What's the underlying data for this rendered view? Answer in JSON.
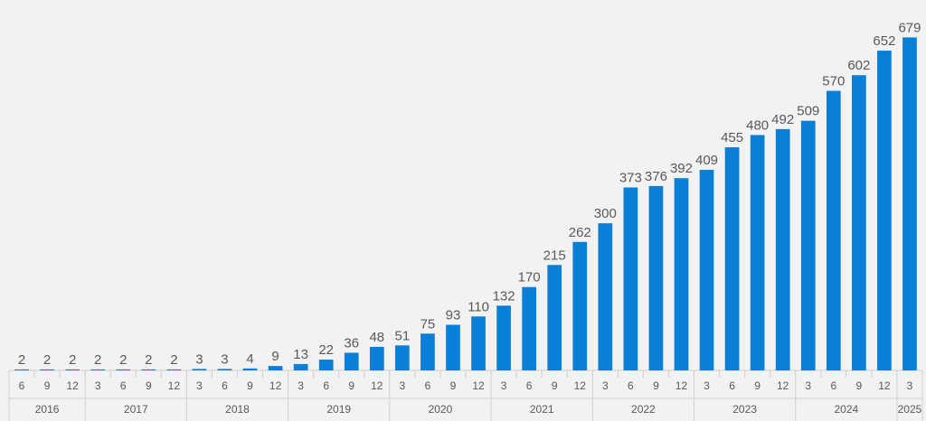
{
  "chart_data": {
    "type": "bar",
    "title": "",
    "xlabel": "",
    "ylabel": "",
    "ylim": [
      0,
      700
    ],
    "grid": false,
    "legend": "none",
    "bar_color": "#0a7fd6",
    "years": [
      {
        "label": "2016",
        "months": [
          "6",
          "9",
          "12"
        ]
      },
      {
        "label": "2017",
        "months": [
          "3",
          "6",
          "9",
          "12"
        ]
      },
      {
        "label": "2018",
        "months": [
          "3",
          "6",
          "9",
          "12"
        ]
      },
      {
        "label": "2019",
        "months": [
          "3",
          "6",
          "9",
          "12"
        ]
      },
      {
        "label": "2020",
        "months": [
          "3",
          "6",
          "9",
          "12"
        ]
      },
      {
        "label": "2021",
        "months": [
          "3",
          "6",
          "9",
          "12"
        ]
      },
      {
        "label": "2022",
        "months": [
          "3",
          "6",
          "9",
          "12"
        ]
      },
      {
        "label": "2023",
        "months": [
          "3",
          "6",
          "9",
          "12"
        ]
      },
      {
        "label": "2024",
        "months": [
          "3",
          "6",
          "9",
          "12"
        ]
      },
      {
        "label": "2025",
        "months": [
          "3"
        ]
      }
    ],
    "values": [
      2,
      2,
      2,
      2,
      2,
      2,
      2,
      3,
      3,
      4,
      9,
      13,
      22,
      36,
      48,
      51,
      75,
      93,
      110,
      132,
      170,
      215,
      262,
      300,
      373,
      376,
      392,
      409,
      455,
      480,
      492,
      509,
      570,
      602,
      652,
      679
    ]
  }
}
